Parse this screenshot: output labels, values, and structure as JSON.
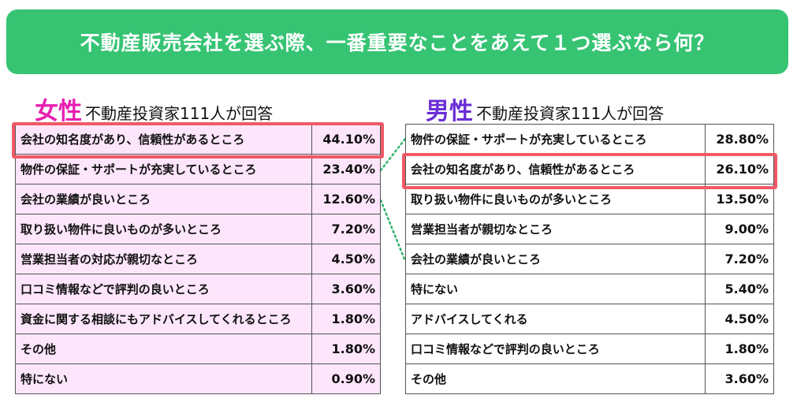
{
  "banner": {
    "title": "不動産販売会社を選ぶ際、一番重要なことをあえて１つ選ぶなら何？"
  },
  "female": {
    "label": "女性",
    "subtitle": "不動産投資家111人が回答"
  },
  "male": {
    "label": "男性",
    "subtitle": "不動産投資家111人が回答"
  },
  "colors": {
    "banner_bg": "#36c473",
    "female_accent": "#e81fb0",
    "male_accent": "#6a2dd6",
    "female_table_bg": "#fde6fb",
    "highlight_border": "#f05a66",
    "connector": "#2fb36b"
  },
  "chart_data": [
    {
      "type": "table",
      "title": "女性 不動産投資家111人が回答",
      "rows": [
        {
          "label": "会社の知名度があり、信頼性があるところ",
          "value": "44.10%"
        },
        {
          "label": "物件の保証・サポートが充実しているところ",
          "value": "23.40%"
        },
        {
          "label": "会社の業績が良いところ",
          "value": "12.60%"
        },
        {
          "label": "取り扱い物件に良いものが多いところ",
          "value": "7.20%"
        },
        {
          "label": "営業担当者の対応が親切なところ",
          "value": "4.50%"
        },
        {
          "label": "口コミ情報などで評判の良いところ",
          "value": "3.60%"
        },
        {
          "label": "資金に関する相談にもアドバイスしてくれるところ",
          "value": "1.80%"
        },
        {
          "label": "その他",
          "value": "1.80%"
        },
        {
          "label": "特にない",
          "value": "0.90%"
        }
      ]
    },
    {
      "type": "table",
      "title": "男性 不動産投資家111人が回答",
      "rows": [
        {
          "label": "物件の保証・サポートが充実しているところ",
          "value": "28.80%"
        },
        {
          "label": "会社の知名度があり、信頼性があるところ",
          "value": "26.10%"
        },
        {
          "label": "取り扱い物件に良いものが多いところ",
          "value": "13.50%"
        },
        {
          "label": "営業担当者が親切なところ",
          "value": "9.00%"
        },
        {
          "label": "会社の業績が良いところ",
          "value": "7.20%"
        },
        {
          "label": "特にない",
          "value": "5.40%"
        },
        {
          "label": "アドバイスしてくれる",
          "value": "4.50%"
        },
        {
          "label": "口コミ情報などで評判の良いところ",
          "value": "1.80%"
        },
        {
          "label": "その他",
          "value": "3.60%"
        }
      ]
    }
  ]
}
